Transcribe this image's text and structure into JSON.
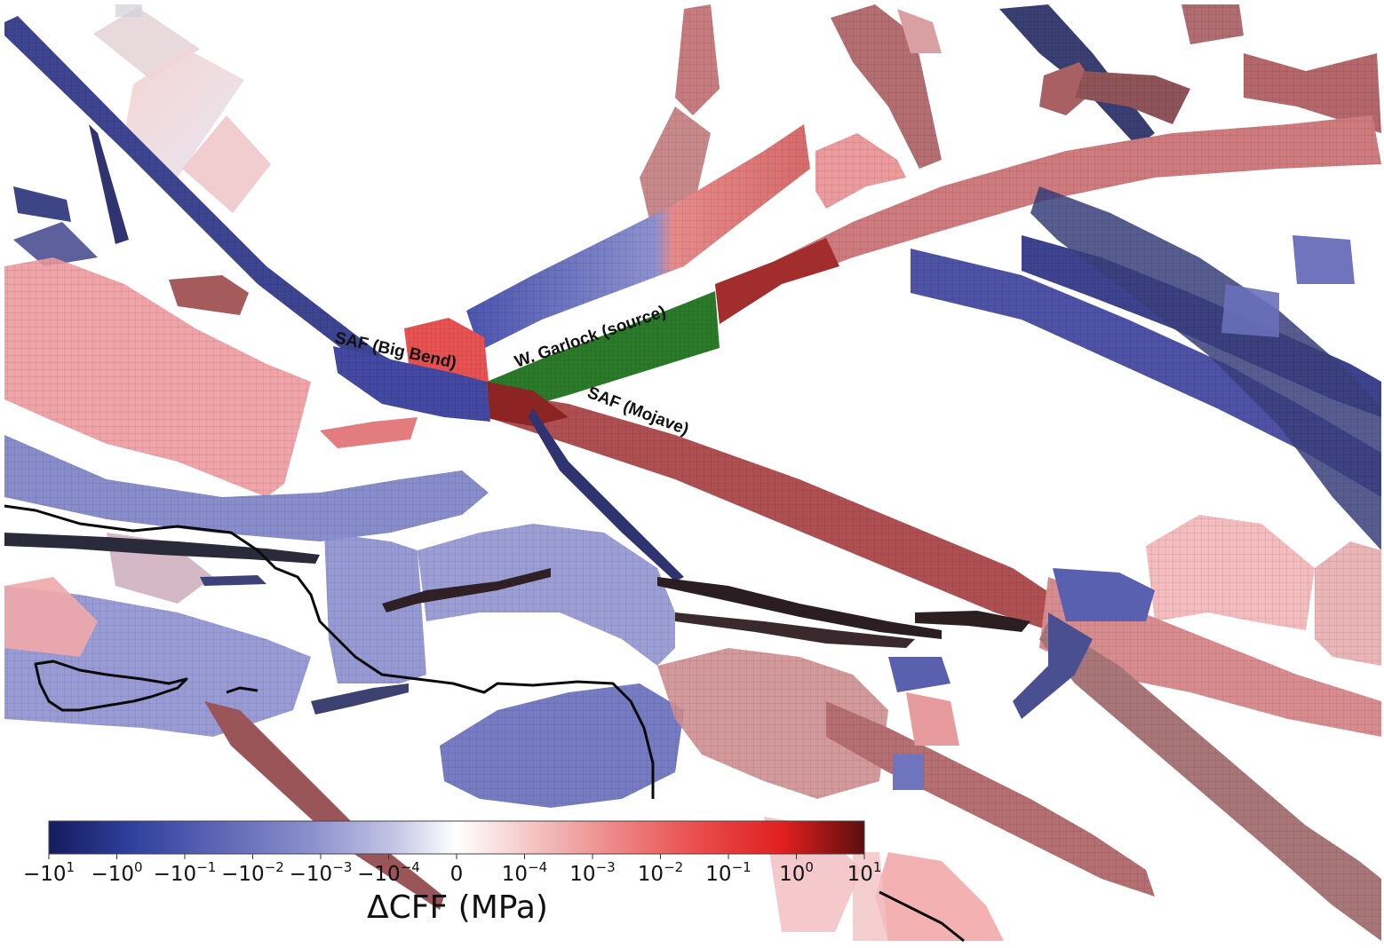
{
  "labels": {
    "saf_big_bend": "SAF (Big Bend)",
    "w_garlock": "W. Garlock (source)",
    "saf_mojave": "SAF (Mojave)"
  },
  "colorbar": {
    "title": "ΔCFF (MPa)",
    "ticks": [
      {
        "base": "−10",
        "exp": "1"
      },
      {
        "base": "−10",
        "exp": "0"
      },
      {
        "base": "−10",
        "exp": "−1"
      },
      {
        "base": "−10",
        "exp": "−2"
      },
      {
        "base": "−10",
        "exp": "−3"
      },
      {
        "base": "−10",
        "exp": "−4"
      },
      {
        "base": "0",
        "exp": ""
      },
      {
        "base": "10",
        "exp": "−4"
      },
      {
        "base": "10",
        "exp": "−3"
      },
      {
        "base": "10",
        "exp": "−2"
      },
      {
        "base": "10",
        "exp": "−1"
      },
      {
        "base": "10",
        "exp": "0"
      },
      {
        "base": "10",
        "exp": "1"
      }
    ],
    "colors": [
      "#151c5e",
      "#2e3f9c",
      "#5a63b4",
      "#8a8fcc",
      "#c1c3e4",
      "#ffffff",
      "#f6cccc",
      "#ee8f8f",
      "#e94a4a",
      "#e02020",
      "#5a0e0e"
    ]
  },
  "palette": {
    "source": "#2a7a2a",
    "dark_red": "#a53a3a",
    "red": "#e5787a",
    "pink": "#f1b3b4",
    "blue": "#4b4fa6",
    "navy": "#2c3275",
    "lavender": "#9599d3",
    "trace": "#0a0a0a"
  }
}
